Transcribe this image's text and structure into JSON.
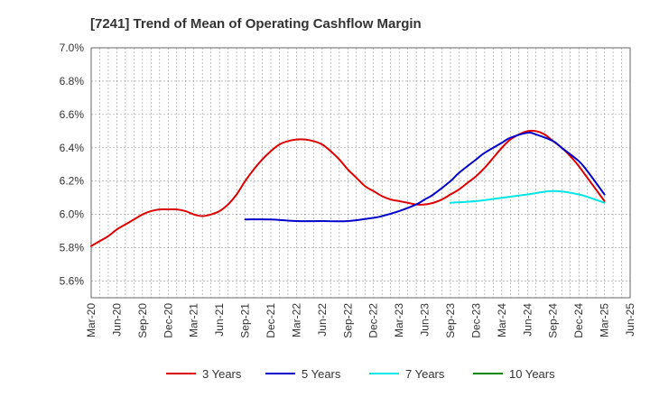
{
  "chart_data": {
    "type": "line",
    "title": "[7241]  Trend of Mean of Operating Cashflow Margin",
    "xlabel": "",
    "ylabel": "",
    "x_ticks": [
      "Mar-20",
      "Jun-20",
      "Sep-20",
      "Dec-20",
      "Mar-21",
      "Jun-21",
      "Sep-21",
      "Dec-21",
      "Mar-22",
      "Jun-22",
      "Sep-22",
      "Dec-22",
      "Mar-23",
      "Jun-23",
      "Sep-23",
      "Dec-23",
      "Mar-24",
      "Jun-24",
      "Sep-24",
      "Dec-24",
      "Mar-25",
      "Jun-25"
    ],
    "y_ticks": [
      "5.6%",
      "5.8%",
      "6.0%",
      "6.2%",
      "6.4%",
      "6.6%",
      "6.8%",
      "7.0%"
    ],
    "ylim": [
      5.5,
      7.0
    ],
    "grid": true,
    "legend_position": "bottom",
    "series": [
      {
        "name": "3 Years",
        "color": "#dd0000",
        "x": [
          "2020-03",
          "2020-04",
          "2020-05",
          "2020-06",
          "2020-07",
          "2020-08",
          "2020-09",
          "2020-10",
          "2020-11",
          "2020-12",
          "2021-01",
          "2021-02",
          "2021-03",
          "2021-04",
          "2021-05",
          "2021-06",
          "2021-07",
          "2021-08",
          "2021-09",
          "2021-10",
          "2021-11",
          "2021-12",
          "2022-01",
          "2022-02",
          "2022-03",
          "2022-04",
          "2022-05",
          "2022-06",
          "2022-07",
          "2022-08",
          "2022-09",
          "2022-10",
          "2022-11",
          "2022-12",
          "2023-01",
          "2023-02",
          "2023-03",
          "2023-04",
          "2023-05",
          "2023-06",
          "2023-07",
          "2023-08",
          "2023-09",
          "2023-10",
          "2023-11",
          "2023-12",
          "2024-01",
          "2024-02",
          "2024-03",
          "2024-04",
          "2024-05",
          "2024-06",
          "2024-07",
          "2024-08",
          "2024-09",
          "2024-10",
          "2024-11",
          "2024-12",
          "2025-01",
          "2025-02",
          "2025-03"
        ],
        "values": [
          5.81,
          5.84,
          5.87,
          5.91,
          5.94,
          5.97,
          6.0,
          6.02,
          6.03,
          6.03,
          6.03,
          6.02,
          6.0,
          5.99,
          6.0,
          6.02,
          6.06,
          6.12,
          6.2,
          6.27,
          6.33,
          6.38,
          6.42,
          6.44,
          6.45,
          6.45,
          6.44,
          6.42,
          6.38,
          6.33,
          6.27,
          6.22,
          6.17,
          6.14,
          6.11,
          6.09,
          6.08,
          6.07,
          6.06,
          6.06,
          6.07,
          6.09,
          6.12,
          6.15,
          6.19,
          6.23,
          6.28,
          6.34,
          6.4,
          6.45,
          6.48,
          6.5,
          6.5,
          6.48,
          6.44,
          6.4,
          6.35,
          6.29,
          6.22,
          6.15,
          6.08
        ]
      },
      {
        "name": "5 Years",
        "color": "#0000cc",
        "x": [
          "2021-09",
          "2021-12",
          "2022-03",
          "2022-06",
          "2022-09",
          "2022-12",
          "2023-01",
          "2023-03",
          "2023-05",
          "2023-06",
          "2023-07",
          "2023-09",
          "2023-10",
          "2023-12",
          "2024-01",
          "2024-03",
          "2024-04",
          "2024-06",
          "2024-07",
          "2024-09",
          "2024-10",
          "2024-12",
          "2025-01",
          "2025-03"
        ],
        "values": [
          5.97,
          5.97,
          5.96,
          5.96,
          5.96,
          5.98,
          5.99,
          6.02,
          6.06,
          6.09,
          6.12,
          6.2,
          6.25,
          6.33,
          6.37,
          6.43,
          6.46,
          6.49,
          6.48,
          6.44,
          6.4,
          6.32,
          6.26,
          6.12
        ]
      },
      {
        "name": "7 Years",
        "color": "#00e5e5",
        "x": [
          "2023-09",
          "2023-12",
          "2024-03",
          "2024-06",
          "2024-09",
          "2024-12",
          "2025-03"
        ],
        "values": [
          6.07,
          6.08,
          6.1,
          6.12,
          6.14,
          6.12,
          6.07
        ]
      },
      {
        "name": "10 Years",
        "color": "#008800",
        "x": [],
        "values": []
      }
    ]
  }
}
